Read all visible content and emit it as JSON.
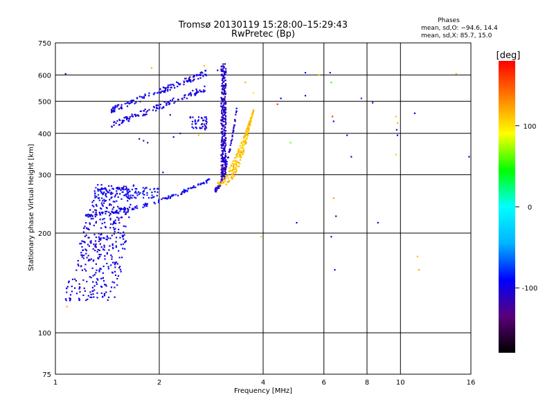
{
  "chart_data": {
    "type": "scatter",
    "title": "Tromsø 20130119 15:28:00–15:29:43",
    "subtitle": "RwPretec (Bp)",
    "phase_stats": {
      "heading": "Phases",
      "line_o": "mean, sd,O: −94.6, 14.4",
      "line_x": "mean, sd,X:  85.7, 15.0"
    },
    "xlabel": "Frequency [MHz]",
    "ylabel": "Stationary phase Virtual Height [km]",
    "x_scale": "log",
    "y_scale": "log",
    "xlim": [
      1,
      16
    ],
    "ylim": [
      75,
      750
    ],
    "x_ticks": [
      1,
      2,
      4,
      6,
      8,
      10,
      16
    ],
    "x_tick_labels": [
      "1",
      "2",
      "4",
      "6",
      "8",
      "10",
      "16"
    ],
    "y_ticks": [
      75,
      100,
      200,
      300,
      400,
      500,
      600,
      750
    ],
    "y_tick_labels": [
      "75",
      "100",
      "200",
      "300",
      "400",
      "500",
      "600",
      "750"
    ],
    "grid": true,
    "colorbar": {
      "label": "[deg]",
      "range": [
        -180,
        180
      ],
      "ticks": [
        -100,
        0,
        100
      ],
      "tick_labels": [
        "-100",
        "0",
        "100"
      ],
      "colors": [
        "#000000",
        "#5a007a",
        "#0000ff",
        "#00b4ff",
        "#00ffff",
        "#00ff00",
        "#ffff00",
        "#ff8000",
        "#ff0000"
      ]
    },
    "traces": [
      {
        "name": "o_lower_F",
        "phase": -95,
        "x0": 1.22,
        "x1": 2.8,
        "y0": 228,
        "y1": 290,
        "shape": "line",
        "n": 130,
        "spread": 0.012
      },
      {
        "name": "o_E_group",
        "phase": -100,
        "x0": 1.05,
        "x1": 1.7,
        "y0": 125,
        "y1": 280,
        "shape": "cloud",
        "n": 420,
        "spread": 0.0
      },
      {
        "name": "o_band_265",
        "phase": -90,
        "x0": 1.3,
        "x1": 2.0,
        "y0": 255,
        "y1": 275,
        "shape": "cloud",
        "n": 90,
        "spread": 0.0
      },
      {
        "name": "o_F2_cusp",
        "phase": -110,
        "x0": 3.02,
        "x1": 3.12,
        "y0": 290,
        "y1": 650,
        "shape": "cloud",
        "n": 300,
        "spread": 0.0
      },
      {
        "name": "o_F2_rise",
        "phase": -105,
        "x0": 2.9,
        "x1": 3.35,
        "y0": 270,
        "y1": 470,
        "shape": "line",
        "n": 80,
        "spread": 0.015
      },
      {
        "name": "x_trace",
        "phase": 110,
        "x0": 3.0,
        "x1": 3.75,
        "y0": 280,
        "y1": 470,
        "shape": "xtrace",
        "n": 230,
        "spread": 0.0
      },
      {
        "name": "o_upper_arc",
        "phase": -100,
        "x0": 1.45,
        "x1": 2.75,
        "y0": 470,
        "y1": 610,
        "shape": "arc",
        "n": 260,
        "spread": 0.0
      },
      {
        "name": "o_cluster_420",
        "phase": -100,
        "x0": 2.45,
        "x1": 2.75,
        "y0": 410,
        "y1": 450,
        "shape": "cloud",
        "n": 40,
        "spread": 0.0
      }
    ],
    "scattered_points": [
      {
        "x": 1.07,
        "y": 605,
        "phase": -110
      },
      {
        "x": 1.9,
        "y": 630,
        "phase": 120
      },
      {
        "x": 2.7,
        "y": 640,
        "phase": 110
      },
      {
        "x": 3.55,
        "y": 570,
        "phase": 120
      },
      {
        "x": 3.75,
        "y": 530,
        "phase": 110
      },
      {
        "x": 4.4,
        "y": 490,
        "phase": 150
      },
      {
        "x": 4.5,
        "y": 510,
        "phase": -100
      },
      {
        "x": 4.8,
        "y": 375,
        "phase": 60
      },
      {
        "x": 5.3,
        "y": 610,
        "phase": -100
      },
      {
        "x": 5.3,
        "y": 520,
        "phase": -90
      },
      {
        "x": 5.8,
        "y": 600,
        "phase": 120
      },
      {
        "x": 6.25,
        "y": 610,
        "phase": -80
      },
      {
        "x": 6.3,
        "y": 570,
        "phase": 60
      },
      {
        "x": 6.35,
        "y": 450,
        "phase": 170
      },
      {
        "x": 6.4,
        "y": 435,
        "phase": -110
      },
      {
        "x": 6.4,
        "y": 255,
        "phase": 120
      },
      {
        "x": 6.5,
        "y": 225,
        "phase": -110
      },
      {
        "x": 6.3,
        "y": 195,
        "phase": -110
      },
      {
        "x": 6.45,
        "y": 155,
        "phase": -100
      },
      {
        "x": 5.0,
        "y": 215,
        "phase": -80
      },
      {
        "x": 3.95,
        "y": 195,
        "phase": 120
      },
      {
        "x": 7.0,
        "y": 395,
        "phase": -110
      },
      {
        "x": 7.2,
        "y": 340,
        "phase": -110
      },
      {
        "x": 7.7,
        "y": 510,
        "phase": -80
      },
      {
        "x": 8.3,
        "y": 495,
        "phase": -90
      },
      {
        "x": 8.6,
        "y": 215,
        "phase": -110
      },
      {
        "x": 9.7,
        "y": 450,
        "phase": 110
      },
      {
        "x": 9.8,
        "y": 430,
        "phase": 120
      },
      {
        "x": 9.75,
        "y": 410,
        "phase": -110
      },
      {
        "x": 9.8,
        "y": 395,
        "phase": -110
      },
      {
        "x": 9.7,
        "y": 345,
        "phase": 110
      },
      {
        "x": 11.0,
        "y": 460,
        "phase": -100
      },
      {
        "x": 11.2,
        "y": 170,
        "phase": 110
      },
      {
        "x": 11.3,
        "y": 155,
        "phase": 110
      },
      {
        "x": 14.5,
        "y": 605,
        "phase": 120
      },
      {
        "x": 15.8,
        "y": 340,
        "phase": -110
      },
      {
        "x": 1.08,
        "y": 120,
        "phase": 110
      },
      {
        "x": 1.75,
        "y": 385,
        "phase": -110
      },
      {
        "x": 1.8,
        "y": 380,
        "phase": -130
      },
      {
        "x": 1.85,
        "y": 375,
        "phase": -130
      },
      {
        "x": 2.05,
        "y": 305,
        "phase": -100
      },
      {
        "x": 2.2,
        "y": 390,
        "phase": -100
      },
      {
        "x": 2.3,
        "y": 400,
        "phase": -110
      },
      {
        "x": 2.6,
        "y": 395,
        "phase": 110
      },
      {
        "x": 2.15,
        "y": 455,
        "phase": -110
      },
      {
        "x": 2.95,
        "y": 620,
        "phase": -100
      }
    ]
  }
}
